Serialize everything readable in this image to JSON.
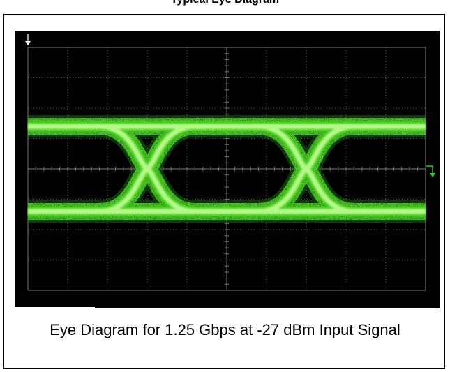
{
  "page": {
    "title": "Typical Eye Diagram",
    "caption": "Eye Diagram for 1.25 Gbps at -27 dBm Input Signal"
  },
  "colors": {
    "trace_bright": "#c8ff9a",
    "trace": "#4fd626",
    "trace_dim": "#1f7a10",
    "grid": "#7a7a7a",
    "screen": "#000000",
    "marker": "#33cc33"
  },
  "chart_data": {
    "type": "eye diagram",
    "signal_rate": "1.25 Gbps",
    "input_level": "-27 dBm",
    "grid": true,
    "divisions": {
      "x": 10,
      "y": 8
    },
    "crossings_x_div": [
      3.0,
      7.0
    ],
    "high_level_div": 1.4,
    "low_level_div": -1.4,
    "level_thickness_div": 0.55,
    "markers": [
      "trigger-arrow",
      "ground-reference"
    ]
  }
}
